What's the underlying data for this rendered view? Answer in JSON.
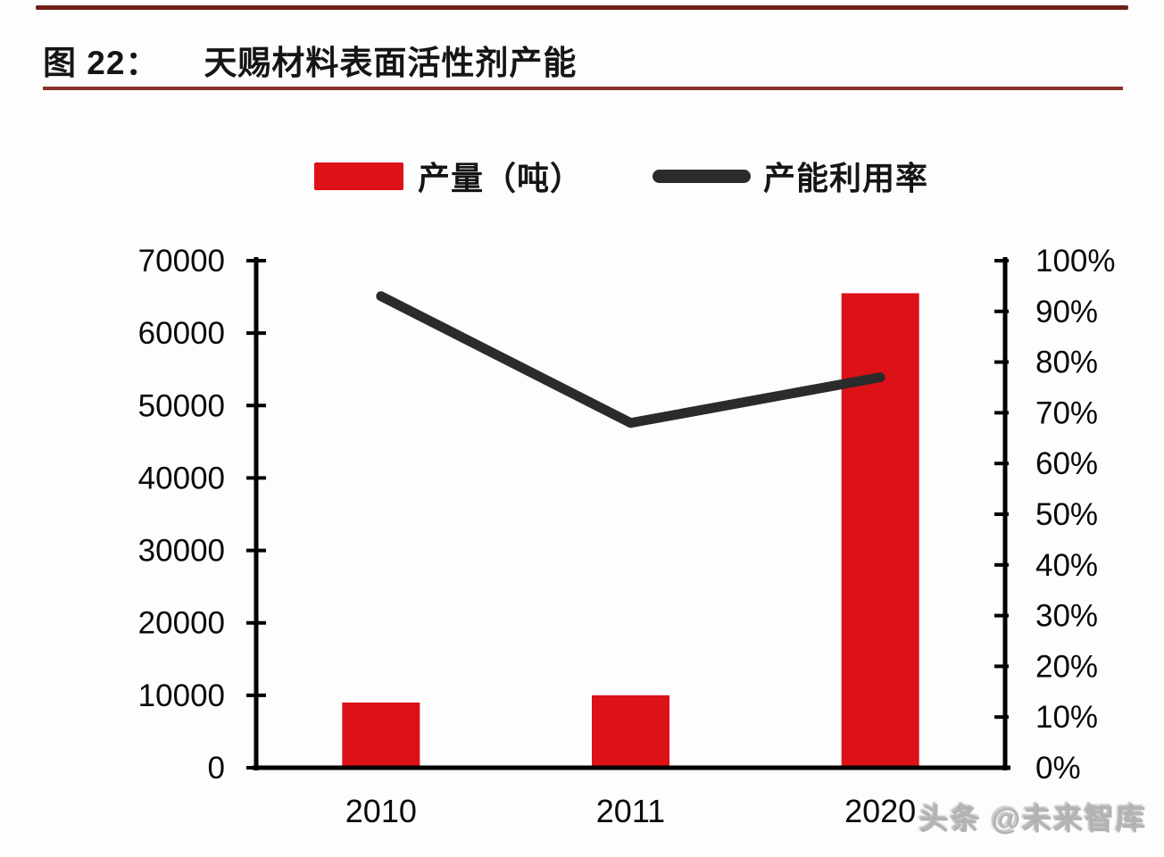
{
  "figure": {
    "label": "图 22：",
    "title": "天赐材料表面活性剂产能"
  },
  "watermark": "头条 @未来智库",
  "colors": {
    "bar": "#dd1118",
    "line": "#2b2b2b",
    "axis": "#000000",
    "title_rule": "#8b3226",
    "top_rule": "#6e2018"
  },
  "chart_data": {
    "type": "bar",
    "subtype": "bar+line combo, dual axis",
    "title": "天赐材料表面活性剂产能",
    "categories": [
      "2010",
      "2011",
      "2020"
    ],
    "series": [
      {
        "name": "产量（吨）",
        "type": "bar",
        "axis": "left",
        "values": [
          9000,
          10000,
          65500
        ]
      },
      {
        "name": "产能利用率",
        "type": "line",
        "axis": "right",
        "values_pct": [
          93,
          68,
          77
        ]
      }
    ],
    "left_axis": {
      "min": 0,
      "max": 70000,
      "step": 10000,
      "tick_labels": [
        "0",
        "10000",
        "20000",
        "30000",
        "40000",
        "50000",
        "60000",
        "70000"
      ]
    },
    "right_axis": {
      "min_pct": 0,
      "max_pct": 100,
      "step_pct": 10,
      "tick_labels": [
        "0%",
        "10%",
        "20%",
        "30%",
        "40%",
        "50%",
        "60%",
        "70%",
        "80%",
        "90%",
        "100%"
      ]
    },
    "legend_position": "top",
    "grid": false
  }
}
